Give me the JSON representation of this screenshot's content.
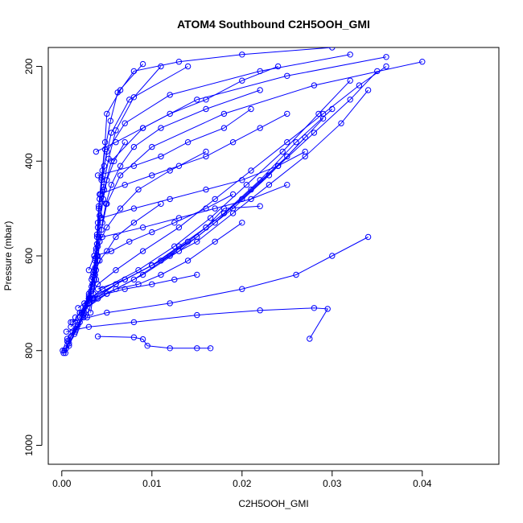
{
  "chart_data": {
    "type": "line",
    "title": "ATOM4 Southbound C2H5OOH_GMI",
    "xlabel": "C2H5OOH_GMI",
    "ylabel": "Pressure (mbar)",
    "xlim": [
      -0.0015,
      0.0485
    ],
    "ylim": [
      1040,
      160
    ],
    "y_reversed": true,
    "grid": false,
    "legend": "none",
    "series_color": "#0000ff",
    "marker": "open-circle",
    "x_ticks": [
      {
        "value": 0.0,
        "label": "0.00"
      },
      {
        "value": 0.01,
        "label": "0.01"
      },
      {
        "value": 0.02,
        "label": "0.02"
      },
      {
        "value": 0.03,
        "label": "0.03"
      },
      {
        "value": 0.04,
        "label": "0.04"
      }
    ],
    "y_ticks": [
      {
        "value": 200,
        "label": "200"
      },
      {
        "value": 400,
        "label": "400"
      },
      {
        "value": 600,
        "label": "600"
      },
      {
        "value": 800,
        "label": "800"
      },
      {
        "value": 1000,
        "label": "1000"
      }
    ],
    "series": [
      {
        "x": [
          0.0002,
          0.0008,
          0.0015,
          0.0025,
          0.003,
          0.0035,
          0.0038,
          0.004,
          0.0042,
          0.0045,
          0.0048,
          0.005,
          0.0065,
          0.008,
          0.013,
          0.02,
          0.03
        ],
        "y": [
          805,
          790,
          760,
          720,
          690,
          640,
          590,
          540,
          480,
          420,
          360,
          300,
          250,
          210,
          190,
          175,
          160
        ]
      },
      {
        "x": [
          0.0003,
          0.001,
          0.002,
          0.0028,
          0.0034,
          0.0037,
          0.0039,
          0.0041,
          0.0044,
          0.005,
          0.007,
          0.012,
          0.022,
          0.032
        ],
        "y": [
          800,
          770,
          740,
          700,
          660,
          610,
          560,
          500,
          440,
          380,
          320,
          260,
          210,
          175
        ]
      },
      {
        "x": [
          0.0004,
          0.0012,
          0.0022,
          0.003,
          0.0036,
          0.004,
          0.0043,
          0.0047,
          0.0055,
          0.009,
          0.015,
          0.025,
          0.036
        ],
        "y": [
          805,
          760,
          720,
          680,
          630,
          580,
          520,
          460,
          400,
          330,
          270,
          220,
          180
        ]
      },
      {
        "x": [
          0.0001,
          0.0006,
          0.0018,
          0.0026,
          0.0033,
          0.0037,
          0.0039,
          0.0042,
          0.0046,
          0.0052,
          0.006,
          0.008,
          0.011
        ],
        "y": [
          800,
          775,
          745,
          705,
          665,
          625,
          575,
          515,
          455,
          395,
          335,
          265,
          200
        ]
      },
      {
        "x": [
          0.0005,
          0.0014,
          0.0024,
          0.0031,
          0.0036,
          0.004,
          0.0044,
          0.005,
          0.0065,
          0.01,
          0.018,
          0.028,
          0.04
        ],
        "y": [
          795,
          765,
          730,
          690,
          650,
          600,
          545,
          490,
          430,
          370,
          300,
          240,
          190
        ]
      },
      {
        "x": [
          0.0008,
          0.0017,
          0.0027,
          0.0032,
          0.0035,
          0.0038,
          0.004,
          0.0043,
          0.0047,
          0.0055,
          0.0075,
          0.014
        ],
        "y": [
          785,
          750,
          715,
          675,
          635,
          585,
          530,
          470,
          410,
          340,
          270,
          200
        ]
      },
      {
        "x": [
          0.0006,
          0.0016,
          0.0024,
          0.003,
          0.0034,
          0.0037,
          0.0039,
          0.0041,
          0.0044,
          0.0048,
          0.0054,
          0.0062,
          0.009
        ],
        "y": [
          780,
          755,
          725,
          685,
          645,
          605,
          555,
          495,
          435,
          375,
          315,
          255,
          195
        ]
      },
      {
        "x": [
          0.001,
          0.002,
          0.003,
          0.004,
          0.006,
          0.009,
          0.013,
          0.017,
          0.021,
          0.025,
          0.029,
          0.033,
          0.036
        ],
        "y": [
          750,
          720,
          690,
          660,
          630,
          590,
          540,
          480,
          420,
          360,
          300,
          240,
          200
        ]
      },
      {
        "x": [
          0.0012,
          0.003,
          0.006,
          0.01,
          0.015,
          0.019,
          0.023,
          0.027,
          0.031,
          0.034
        ],
        "y": [
          740,
          700,
          660,
          620,
          570,
          510,
          450,
          390,
          320,
          250
        ]
      },
      {
        "x": [
          0.0015,
          0.004,
          0.008,
          0.012,
          0.016,
          0.02,
          0.024,
          0.028,
          0.032,
          0.035
        ],
        "y": [
          730,
          690,
          650,
          600,
          540,
          480,
          410,
          340,
          270,
          210
        ]
      },
      {
        "x": [
          0.002,
          0.005,
          0.009,
          0.013,
          0.017,
          0.021,
          0.025,
          0.029
        ],
        "y": [
          720,
          680,
          640,
          590,
          530,
          460,
          390,
          310
        ]
      },
      {
        "x": [
          0.0018,
          0.0045,
          0.0085,
          0.0125,
          0.0165,
          0.0205,
          0.0245,
          0.0285,
          0.032
        ],
        "y": [
          710,
          670,
          630,
          580,
          520,
          450,
          380,
          300,
          230
        ]
      },
      {
        "x": [
          0.0025,
          0.006,
          0.01,
          0.014,
          0.018,
          0.022,
          0.026,
          0.03
        ],
        "y": [
          700,
          660,
          620,
          570,
          510,
          440,
          360,
          290
        ]
      },
      {
        "x": [
          0.003,
          0.007,
          0.011,
          0.015,
          0.019,
          0.023,
          0.027
        ],
        "y": [
          690,
          650,
          610,
          560,
          500,
          430,
          350
        ]
      },
      {
        "x": [
          0.001,
          0.005,
          0.012,
          0.02,
          0.026,
          0.03,
          0.034
        ],
        "y": [
          740,
          720,
          700,
          670,
          640,
          600,
          560
        ]
      },
      {
        "x": [
          0.0005,
          0.003,
          0.008,
          0.015,
          0.022,
          0.028,
          0.0295,
          0.0275
        ],
        "y": [
          760,
          750,
          740,
          725,
          715,
          710,
          712,
          775
        ]
      },
      {
        "x": [
          0.004,
          0.008,
          0.009,
          0.0095,
          0.012,
          0.015,
          0.0165
        ],
        "y": [
          770,
          772,
          776,
          790,
          795,
          795,
          795
        ]
      },
      {
        "x": [
          0.004,
          0.007,
          0.01,
          0.013,
          0.016,
          0.018,
          0.022
        ],
        "y": [
          670,
          650,
          620,
          580,
          540,
          500,
          495
        ]
      },
      {
        "x": [
          0.0035,
          0.006,
          0.0085,
          0.011,
          0.014,
          0.017,
          0.02
        ],
        "y": [
          690,
          670,
          660,
          640,
          610,
          570,
          530
        ]
      },
      {
        "x": [
          0.003,
          0.005,
          0.007,
          0.01,
          0.0125,
          0.015
        ],
        "y": [
          700,
          680,
          670,
          660,
          650,
          640
        ]
      },
      {
        "x": [
          0.0038,
          0.006,
          0.009,
          0.012,
          0.016,
          0.02,
          0.024
        ],
        "y": [
          380,
          360,
          330,
          300,
          270,
          230,
          200
        ]
      },
      {
        "x": [
          0.004,
          0.008,
          0.011,
          0.014,
          0.018,
          0.021
        ],
        "y": [
          430,
          410,
          390,
          360,
          330,
          290
        ]
      },
      {
        "x": [
          0.0042,
          0.007,
          0.01,
          0.013,
          0.016,
          0.019,
          0.022,
          0.025
        ],
        "y": [
          470,
          450,
          430,
          410,
          390,
          360,
          330,
          300
        ]
      },
      {
        "x": [
          0.0044,
          0.008,
          0.012,
          0.016,
          0.02,
          0.024,
          0.027
        ],
        "y": [
          520,
          500,
          480,
          460,
          440,
          410,
          380
        ]
      },
      {
        "x": [
          0.0045,
          0.009,
          0.013,
          0.017,
          0.021,
          0.025
        ],
        "y": [
          560,
          540,
          520,
          500,
          480,
          450
        ]
      },
      {
        "x": [
          0.0036,
          0.0055,
          0.0075,
          0.01,
          0.0125,
          0.016,
          0.019
        ],
        "y": [
          600,
          590,
          570,
          550,
          530,
          500,
          470
        ]
      },
      {
        "x": [
          0.0033,
          0.0038,
          0.0042,
          0.005,
          0.006,
          0.008,
          0.011
        ],
        "y": [
          650,
          630,
          610,
          590,
          560,
          530,
          490
        ]
      },
      {
        "x": [
          0.003,
          0.0036,
          0.0042,
          0.005,
          0.0065,
          0.0085,
          0.012,
          0.016
        ],
        "y": [
          630,
          600,
          570,
          540,
          500,
          460,
          420,
          380
        ]
      },
      {
        "x": [
          0.0032,
          0.0035,
          0.0037,
          0.0039,
          0.0041,
          0.0043,
          0.0046,
          0.005,
          0.0058,
          0.007
        ],
        "y": [
          720,
          680,
          640,
          600,
          560,
          520,
          480,
          440,
          400,
          360
        ]
      },
      {
        "x": [
          0.0028,
          0.0034,
          0.0038,
          0.004,
          0.0042,
          0.0045,
          0.0049,
          0.0055,
          0.0065,
          0.008,
          0.011,
          0.016,
          0.022
        ],
        "y": [
          730,
          690,
          650,
          610,
          570,
          530,
          490,
          450,
          410,
          370,
          330,
          290,
          250
        ]
      }
    ]
  }
}
